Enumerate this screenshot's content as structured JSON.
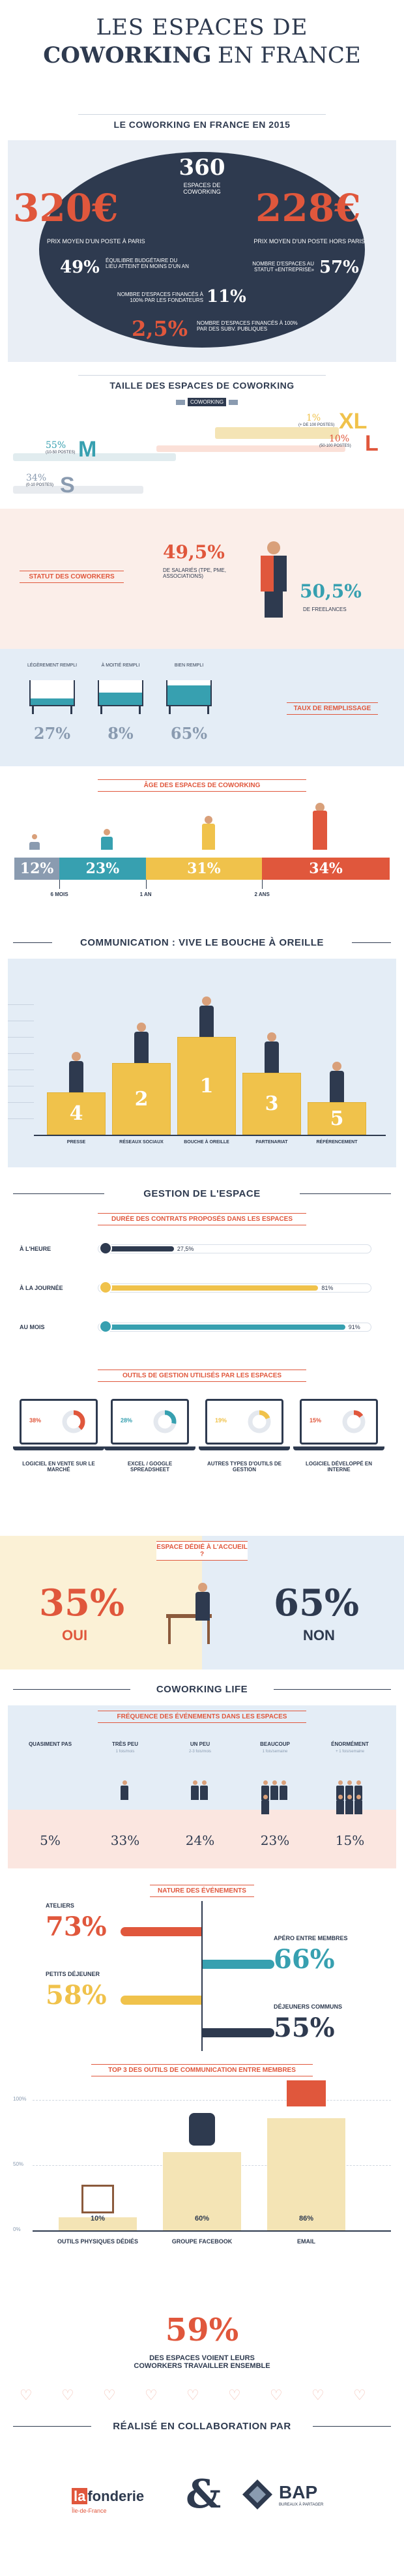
{
  "header": {
    "title_line1": "LES ESPACES DE",
    "title_line2_bold": "COWORKING",
    "title_line2_rest": "EN FRANCE"
  },
  "overview": {
    "title": "LE COWORKING EN FRANCE EN 2015",
    "center_number": "360",
    "center_label": "ESPACES DE COWORKING",
    "left_price": "320€",
    "left_price_label": "PRIX MOYEN D'UN POSTE À PARIS",
    "right_price": "228€",
    "right_price_label": "PRIX MOYEN D'UN POSTE HORS PARIS",
    "stat1_value": "49%",
    "stat1_label": "ÉQUILIBRE BUDGÉTAIRE DU LIEU ATTEINT EN MOINS D'UN AN",
    "stat2_label": "NOMBRE D'ESPACES AU STATUT «ENTREPRISE»",
    "stat2_value": "57%",
    "stat3_label": "NOMBRE D'ESPACES FINANCÉS À 100% PAR LES FONDATEURS",
    "stat3_value": "11%",
    "stat4_value": "2,5%",
    "stat4_label": "NOMBRE D'ESPACES FINANCÉS À 100% PAR DES SUBV. PUBLIQUES"
  },
  "size": {
    "title": "TAILLE DES ESPACES DE COWORKING",
    "legend": "COWORKING",
    "xl_pct": "1%",
    "xl_note": "(+ DE 100 POSTES)",
    "xl_letter": "XL",
    "l_pct": "10%",
    "l_note": "(50-100 POSTES)",
    "l_letter": "L",
    "m_pct": "55%",
    "m_note": "(10-50 POSTES)",
    "m_letter": "M",
    "s_pct": "34%",
    "s_note": "(0-10 POSTES)",
    "s_letter": "S"
  },
  "status": {
    "tag": "STATUT DES COWORKERS",
    "salaried_pct": "49,5%",
    "salaried_label": "DE SALARIÉS (TPE, PME, ASSOCIATIONS)",
    "freelance_pct": "50,5%",
    "freelance_label": "DE FREELANCES"
  },
  "fill": {
    "tag": "TAUX DE REMPLISSAGE",
    "items": [
      {
        "label": "LÉGÈREMENT REMPLI",
        "value": "27%",
        "level": 0.27
      },
      {
        "label": "À MOITIÉ REMPLI",
        "value": "8%",
        "level": 0.5
      },
      {
        "label": "BIEN REMPLI",
        "value": "65%",
        "level": 0.8
      }
    ]
  },
  "age": {
    "tag": "ÂGE DES ESPACES DE COWORKING",
    "segments": [
      {
        "value": "12%",
        "color": "#8a9bb0",
        "share": 12
      },
      {
        "value": "23%",
        "color": "#37a0b0",
        "share": 23
      },
      {
        "value": "31%",
        "color": "#f0c24b",
        "share": 31
      },
      {
        "value": "34%",
        "color": "#e0573c",
        "share": 34
      }
    ],
    "ticks": [
      "6 MOIS",
      "1 AN",
      "2 ANS"
    ]
  },
  "comm": {
    "title": "COMMUNICATION : VIVE LE BOUCHE À OREILLE",
    "podium": [
      {
        "rank": "4",
        "label": "PRESSE"
      },
      {
        "rank": "2",
        "label": "RÉSEAUX SOCIAUX"
      },
      {
        "rank": "1",
        "label": "BOUCHE À OREILLE"
      },
      {
        "rank": "3",
        "label": "PARTENARIAT"
      },
      {
        "rank": "5",
        "label": "RÉFÉRENCEMENT"
      }
    ]
  },
  "gestion": {
    "title": "GESTION DE L'ESPACE",
    "contracts_tag": "DURÉE DES CONTRATS PROPOSÉS DANS LES ESPACES",
    "contracts": [
      {
        "label": "À L'HEURE",
        "value": "27,5%",
        "fraction": 0.275,
        "color": "#2e3a4f"
      },
      {
        "label": "À LA JOURNÉE",
        "value": "81%",
        "fraction": 0.81,
        "color": "#f0c24b"
      },
      {
        "label": "AU MOIS",
        "value": "91%",
        "fraction": 0.91,
        "color": "#37a0b0"
      }
    ],
    "tools_tag": "OUTILS DE GESTION UTILISÉS PAR LES ESPACES",
    "tools": [
      {
        "pct": "38%",
        "label": "LOGICIEL EN VENTE SUR LE MARCHÉ",
        "color": "#e0573c",
        "fraction": 0.38
      },
      {
        "pct": "28%",
        "label": "EXCEL / GOOGLE SPREADSHEET",
        "color": "#37a0b0",
        "fraction": 0.28
      },
      {
        "pct": "19%",
        "label": "AUTRES TYPES D'OUTILS DE GESTION",
        "color": "#f0c24b",
        "fraction": 0.19
      },
      {
        "pct": "15%",
        "label": "LOGICIEL DÉVELOPPÉ EN INTERNE",
        "color": "#e0573c",
        "fraction": 0.15
      }
    ]
  },
  "reception": {
    "tag": "ESPACE DÉDIÉ À L'ACCUEIL ?",
    "yes_pct": "35%",
    "yes_label": "OUI",
    "no_pct": "65%",
    "no_label": "NON"
  },
  "life": {
    "title": "COWORKING LIFE",
    "events_tag": "FRÉQUENCE DES ÉVÉNEMENTS DANS LES ESPACES",
    "frequency": [
      {
        "label": "QUASIMENT PAS",
        "sub": "",
        "value": "5%",
        "people": 0
      },
      {
        "label": "TRÈS PEU",
        "sub": "1 fois/mois",
        "value": "33%",
        "people": 1
      },
      {
        "label": "UN PEU",
        "sub": "2-3 fois/mois",
        "value": "24%",
        "people": 2
      },
      {
        "label": "BEAUCOUP",
        "sub": "1 fois/semaine",
        "value": "23%",
        "people": 4
      },
      {
        "label": "ÉNORMÉMENT",
        "sub": "+ 1 fois/semaine",
        "value": "15%",
        "people": 6
      }
    ],
    "nature_tag": "NATURE DES ÉVÉNEMENTS",
    "nature": [
      {
        "label": "ATELIERS",
        "value": "73%",
        "side": "left",
        "color": "#e0573c"
      },
      {
        "label": "APÉRO ENTRE MEMBRES",
        "value": "66%",
        "side": "right",
        "color": "#37a0b0"
      },
      {
        "label": "PETITS DÉJEUNER",
        "value": "58%",
        "side": "left",
        "color": "#f0c24b"
      },
      {
        "label": "DÉJEUNERS COMMUNS",
        "value": "55%",
        "side": "right",
        "color": "#2e3a4f"
      }
    ],
    "tools_tag": "TOP 3 DES OUTILS DE COMMUNICATION ENTRE MEMBRES",
    "axis": [
      "100%",
      "50%",
      "0%"
    ],
    "comm_tools": [
      {
        "label": "OUTILS PHYSIQUES DÉDIÉS",
        "value": "10%",
        "fraction": 0.1
      },
      {
        "label": "GROUPE FACEBOOK",
        "value": "60%",
        "fraction": 0.6
      },
      {
        "label": "EMAIL",
        "value": "86%",
        "fraction": 0.86
      }
    ],
    "share_pct": "59%",
    "share_label": "DES ESPACES VOIENT LEURS COWORKERS TRAVAILLER ENSEMBLE"
  },
  "footer": {
    "title": "RÉALISÉ EN COLLABORATION PAR",
    "partner1_a": "la",
    "partner1_b": "fonderie",
    "partner1_sub": "Île-de-France",
    "amp": "&",
    "partner2": "BAP",
    "partner2_sub": "BUREAUX À PARTAGER"
  }
}
